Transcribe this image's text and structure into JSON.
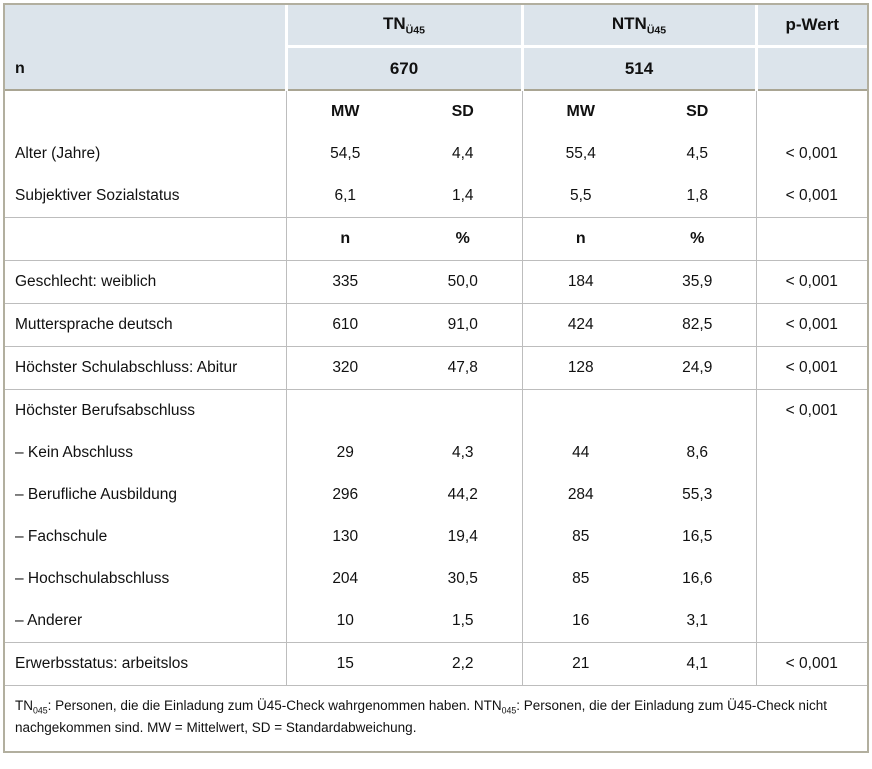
{
  "colors": {
    "header_bg": "#dce4eb",
    "frame_border": "#b2af9f",
    "header_separator": "#a9a593",
    "grid_line": "#bdbdbd",
    "text": "#111111"
  },
  "table": {
    "corner_label": "n",
    "groups": [
      {
        "name_base": "TN",
        "name_sub": "Ü45",
        "n": "670"
      },
      {
        "name_base": "NTN",
        "name_sub": "Ü45",
        "n": "514"
      }
    ],
    "p_header": "p-Wert",
    "rows": [
      {
        "type": "subheader",
        "cells": [
          "MW",
          "SD",
          "MW",
          "SD"
        ],
        "sep": false
      },
      {
        "type": "data",
        "label": "Alter (Jahre)",
        "values": [
          "54,5",
          "4,4",
          "55,4",
          "4,5"
        ],
        "p": "< 0,001",
        "sep": false
      },
      {
        "type": "data",
        "label": "Subjektiver Sozialstatus",
        "values": [
          "6,1",
          "1,4",
          "5,5",
          "1,8"
        ],
        "p": "< 0,001",
        "sep": true
      },
      {
        "type": "subheader",
        "cells": [
          "n",
          "%",
          "n",
          "%"
        ],
        "sep": true
      },
      {
        "type": "data",
        "label": "Geschlecht: weiblich",
        "values": [
          "335",
          "50,0",
          "184",
          "35,9"
        ],
        "p": "< 0,001",
        "sep": true
      },
      {
        "type": "data",
        "label": "Muttersprache deutsch",
        "values": [
          "610",
          "91,0",
          "424",
          "82,5"
        ],
        "p": "< 0,001",
        "sep": true
      },
      {
        "type": "data",
        "label": "Höchster Schulabschluss: Abitur",
        "values": [
          "320",
          "47,8",
          "128",
          "24,9"
        ],
        "p": "< 0,001",
        "sep": true
      },
      {
        "type": "data",
        "label": "Höchster Berufsabschluss",
        "values": [
          "",
          "",
          "",
          ""
        ],
        "p": "< 0,001",
        "sep": false
      },
      {
        "type": "data",
        "label": "– Kein Abschluss",
        "values": [
          "29",
          "4,3",
          "44",
          "8,6"
        ],
        "p": "",
        "sep": false
      },
      {
        "type": "data",
        "label": "– Berufliche Ausbildung",
        "values": [
          "296",
          "44,2",
          "284",
          "55,3"
        ],
        "p": "",
        "sep": false
      },
      {
        "type": "data",
        "label": "– Fachschule",
        "values": [
          "130",
          "19,4",
          "85",
          "16,5"
        ],
        "p": "",
        "sep": false
      },
      {
        "type": "data",
        "label": "– Hochschulabschluss",
        "values": [
          "204",
          "30,5",
          "85",
          "16,6"
        ],
        "p": "",
        "sep": false
      },
      {
        "type": "data",
        "label": "– Anderer",
        "values": [
          "10",
          "1,5",
          "16",
          "3,1"
        ],
        "p": "",
        "sep": true
      },
      {
        "type": "data",
        "label": "Erwerbsstatus: arbeitslos",
        "values": [
          "15",
          "2,2",
          "21",
          "4,1"
        ],
        "p": "< 0,001",
        "sep": true
      }
    ],
    "footnote_parts": [
      {
        "t": "TN"
      },
      {
        "t": "045",
        "sub": true
      },
      {
        "t": ": Personen, die die Einladung zum Ü45-Check wahrgenommen haben. NTN"
      },
      {
        "t": "045",
        "sub": true
      },
      {
        "t": ": Personen, die der Einladung zum Ü45-Check nicht"
      },
      {
        "br": true
      },
      {
        "t": "nachgekommen sind. MW = Mittelwert, SD = Standardabweichung."
      }
    ]
  }
}
